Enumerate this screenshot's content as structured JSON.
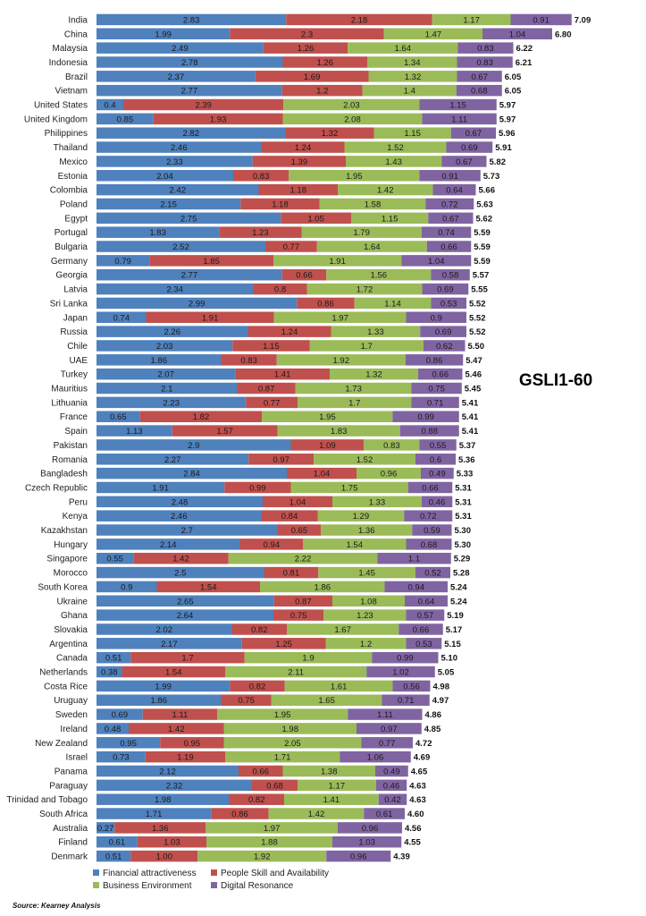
{
  "chart_data": {
    "type": "bar",
    "orientation": "horizontal",
    "stacked": true,
    "title": "GSLI1-60",
    "source": "Source: Kearney Analysis",
    "categories": [
      "India",
      "China",
      "Malaysia",
      "Indonesia",
      "Brazil",
      "Vietnam",
      "United States",
      "United Kingdom",
      "Philippines",
      "Thailand",
      "Mexico",
      "Estonia",
      "Colombia",
      "Poland",
      "Egypt",
      "Portugal",
      "Bulgaria",
      "Germany",
      "Georgia",
      "Latvia",
      "Sri Lanka",
      "Japan",
      "Russia",
      "Chile",
      "UAE",
      "Turkey",
      "Mauritius",
      "Lithuania",
      "France",
      "Spain",
      "Pakistan",
      "Romania",
      "Bangladesh",
      "Czech Republic",
      "Peru",
      "Kenya",
      "Kazakhstan",
      "Hungary",
      "Singapore",
      "Morocco",
      "South Korea",
      "Ukraine",
      "Ghana",
      "Slovakia",
      "Argentina",
      "Canada",
      "Netherlands",
      "Costa Rice",
      "Uruguay",
      "Sweden",
      "Ireland",
      "New Zealand",
      "Israel",
      "Panama",
      "Paraguay",
      "Trinidad and Tobago",
      "South Africa",
      "Australia",
      "Finland",
      "Denmark"
    ],
    "series": [
      {
        "name": "Financial attractiveness",
        "color": "#4f81bd",
        "values": [
          2.83,
          1.99,
          2.49,
          2.78,
          2.37,
          2.77,
          0.4,
          0.85,
          2.82,
          2.46,
          2.33,
          2.04,
          2.42,
          2.15,
          2.75,
          1.83,
          2.52,
          0.79,
          2.77,
          2.34,
          2.99,
          0.74,
          2.26,
          2.03,
          1.86,
          2.07,
          2.1,
          2.23,
          0.65,
          1.13,
          2.9,
          2.27,
          2.84,
          1.91,
          2.48,
          2.46,
          2.7,
          2.14,
          0.55,
          2.5,
          0.9,
          2.65,
          2.64,
          2.02,
          2.17,
          0.51,
          0.38,
          1.99,
          1.86,
          0.69,
          0.48,
          0.95,
          0.73,
          2.12,
          2.32,
          1.98,
          1.71,
          0.27,
          0.61,
          0.51
        ]
      },
      {
        "name": "People Skill and Availability",
        "color": "#c0504d",
        "values": [
          2.18,
          2.3,
          1.26,
          1.26,
          1.69,
          1.2,
          2.39,
          1.93,
          1.32,
          1.24,
          1.39,
          0.83,
          1.18,
          1.18,
          1.05,
          1.23,
          0.77,
          1.85,
          0.66,
          0.8,
          0.86,
          1.91,
          1.24,
          1.15,
          0.83,
          1.41,
          0.87,
          0.77,
          1.82,
          1.57,
          1.09,
          0.97,
          1.04,
          0.99,
          1.04,
          0.84,
          0.65,
          0.94,
          1.42,
          0.81,
          1.54,
          0.87,
          0.75,
          0.82,
          1.25,
          1.7,
          1.54,
          0.82,
          0.75,
          1.11,
          1.42,
          0.95,
          1.19,
          0.66,
          0.68,
          0.82,
          0.86,
          1.36,
          1.03,
          1.0
        ]
      },
      {
        "name": "Business Environment",
        "color": "#9bbb59",
        "values": [
          1.17,
          1.47,
          1.64,
          1.34,
          1.32,
          1.4,
          2.03,
          2.08,
          1.15,
          1.52,
          1.43,
          1.95,
          1.42,
          1.58,
          1.15,
          1.79,
          1.64,
          1.91,
          1.56,
          1.72,
          1.14,
          1.97,
          1.33,
          1.7,
          1.92,
          1.32,
          1.73,
          1.7,
          1.95,
          1.83,
          0.83,
          1.52,
          0.96,
          1.75,
          1.33,
          1.29,
          1.36,
          1.54,
          2.22,
          1.45,
          1.86,
          1.08,
          1.23,
          1.67,
          1.2,
          1.9,
          2.11,
          1.61,
          1.65,
          1.95,
          1.98,
          2.05,
          1.71,
          1.38,
          1.17,
          1.41,
          1.42,
          1.97,
          1.88,
          1.92
        ]
      },
      {
        "name": "Digital Resonance",
        "color": "#8064a2",
        "values": [
          0.91,
          1.04,
          0.83,
          0.83,
          0.67,
          0.68,
          1.15,
          1.11,
          0.67,
          0.69,
          0.67,
          0.91,
          0.64,
          0.72,
          0.67,
          0.74,
          0.66,
          1.04,
          0.58,
          0.69,
          0.53,
          0.9,
          0.69,
          0.62,
          0.86,
          0.66,
          0.75,
          0.71,
          0.99,
          0.88,
          0.55,
          0.6,
          0.49,
          0.66,
          0.46,
          0.72,
          0.59,
          0.68,
          1.1,
          0.52,
          0.94,
          0.64,
          0.57,
          0.66,
          0.53,
          0.99,
          1.02,
          0.56,
          0.71,
          1.11,
          0.97,
          0.77,
          1.06,
          0.49,
          0.46,
          0.42,
          0.61,
          0.96,
          1.03,
          0.96
        ]
      }
    ],
    "segment_labels": [
      [
        "2.83",
        "2.18",
        "1.17",
        "0.91"
      ],
      [
        "1.99",
        "2.3",
        "1.47",
        "1.04"
      ],
      [
        "2.49",
        "1.26",
        "1.64",
        "0.83"
      ],
      [
        "2.78",
        "1.26",
        "1.34",
        "0.83"
      ],
      [
        "2.37",
        "1.69",
        "1.32",
        "0.67"
      ],
      [
        "2.77",
        "1.2",
        "1.4",
        "0.68"
      ],
      [
        "0.4",
        "2.39",
        "2.03",
        "1.15"
      ],
      [
        "0.85",
        "1.93",
        "2.08",
        "1.11"
      ],
      [
        "2.82",
        "1.32",
        "1.15",
        "0.67"
      ],
      [
        "2.46",
        "1.24",
        "1.52",
        "0.69"
      ],
      [
        "2.33",
        "1.39",
        "1.43",
        "0.67"
      ],
      [
        "2.04",
        "0.83",
        "1.95",
        "0.91"
      ],
      [
        "2.42",
        "1.18",
        "1.42",
        "0.64"
      ],
      [
        "2.15",
        "1.18",
        "1.58",
        "0.72"
      ],
      [
        "2.75",
        "1.05",
        "1.15",
        "0.67"
      ],
      [
        "1.83",
        "1.23",
        "1.79",
        "0.74"
      ],
      [
        "2.52",
        "0.77",
        "1.64",
        "0.66"
      ],
      [
        "0.79",
        "1.85",
        "1.91",
        "1.04"
      ],
      [
        "2.77",
        "0.66",
        "1.56",
        "0.58"
      ],
      [
        "2.34",
        "0.8",
        "1.72",
        "0.69"
      ],
      [
        "2.99",
        "0.86",
        "1.14",
        "0.53"
      ],
      [
        "0.74",
        "1.91",
        "1.97",
        "0.9"
      ],
      [
        "2.26",
        "1.24",
        "1.33",
        "0.69"
      ],
      [
        "2.03",
        "1.15",
        "1.7",
        "0.62"
      ],
      [
        "1.86",
        "0.83",
        "1.92",
        "0.86"
      ],
      [
        "2.07",
        "1.41",
        "1.32",
        "0.66"
      ],
      [
        "2.1",
        "0.87",
        "1.73",
        "0.75"
      ],
      [
        "2.23",
        "0.77",
        "1.7",
        "0.71"
      ],
      [
        "0.65",
        "1.82",
        "1.95",
        "0.99"
      ],
      [
        "1.13",
        "1.57",
        "1.83",
        "0.88"
      ],
      [
        "2.9",
        "1.09",
        "0.83",
        "0.55"
      ],
      [
        "2.27",
        "0.97",
        "1.52",
        "0.6"
      ],
      [
        "2.84",
        "1.04",
        "0.96",
        "0.49"
      ],
      [
        "1.91",
        "0.99",
        "1.75",
        "0.66"
      ],
      [
        "2.48",
        "1.04",
        "1.33",
        "0.46"
      ],
      [
        "2.46",
        "0.84",
        "1.29",
        "0.72"
      ],
      [
        "2.7",
        "0.65",
        "1.36",
        "0.59"
      ],
      [
        "2.14",
        "0.94",
        "1.54",
        "0.68"
      ],
      [
        "0.55",
        "1.42",
        "2.22",
        "1.1"
      ],
      [
        "2.5",
        "0.81",
        "1.45",
        "0.52"
      ],
      [
        "0.9",
        "1.54",
        "1.86",
        "0.94"
      ],
      [
        "2.65",
        "0.87",
        "1.08",
        "0.64"
      ],
      [
        "2.64",
        "0.75",
        "1.23",
        "0.57"
      ],
      [
        "2.02",
        "0.82",
        "1.67",
        "0.66"
      ],
      [
        "2.17",
        "1.25",
        "1.2",
        "0.53"
      ],
      [
        "0.51",
        "1.7",
        "1.9",
        "0.99"
      ],
      [
        "0.38",
        "1.54",
        "2.11",
        "1.02"
      ],
      [
        "1.99",
        "0.82",
        "1.61",
        "0.56"
      ],
      [
        "1.86",
        "0.75",
        "1.65",
        "0.71"
      ],
      [
        "0.69",
        "1.11",
        "1.95",
        "1.11"
      ],
      [
        "0.48",
        "1.42",
        "1.98",
        "0.97"
      ],
      [
        "0.95",
        "0.95",
        "2.05",
        "0.77"
      ],
      [
        "0.73",
        "1.19",
        "1.71",
        "1.06"
      ],
      [
        "2.12",
        "0.66",
        "1.38",
        "0.49"
      ],
      [
        "2.32",
        "0.68",
        "1.17",
        "0.46"
      ],
      [
        "1.98",
        "0.82",
        "1.41",
        "0.42"
      ],
      [
        "1.71",
        "0.86",
        "1.42",
        "0.61"
      ],
      [
        "0.27",
        "1.36",
        "1.97",
        "0.96"
      ],
      [
        "0.61",
        "1.03",
        "1.88",
        "1.03"
      ],
      [
        "0.51",
        "1.00",
        "1.92",
        "0.96"
      ]
    ],
    "totals": [
      "7.09",
      "6.80",
      "6.22",
      "6.21",
      "6.05",
      "6.05",
      "5.97",
      "5.97",
      "5.96",
      "5.91",
      "5.82",
      "5.73",
      "5.66",
      "5.63",
      "5.62",
      "5.59",
      "5.59",
      "5.59",
      "5.57",
      "5.55",
      "5.52",
      "5.52",
      "5.52",
      "5.50",
      "5.47",
      "5.46",
      "5.45",
      "5.41",
      "5.41",
      "5.41",
      "5.37",
      "5.36",
      "5.33",
      "5.31",
      "5.31",
      "5.31",
      "5.30",
      "5.30",
      "5.29",
      "5.28",
      "5.24",
      "5.24",
      "5.19",
      "5.17",
      "5.15",
      "5.10",
      "5.05",
      "4.98",
      "4.97",
      "4.86",
      "4.85",
      "4.72",
      "4.69",
      "4.65",
      "4.63",
      "4.63",
      "4.60",
      "4.56",
      "4.55",
      "4.39"
    ],
    "xlim": [
      0,
      7.5
    ],
    "grid": false,
    "legend_position": "bottom"
  }
}
